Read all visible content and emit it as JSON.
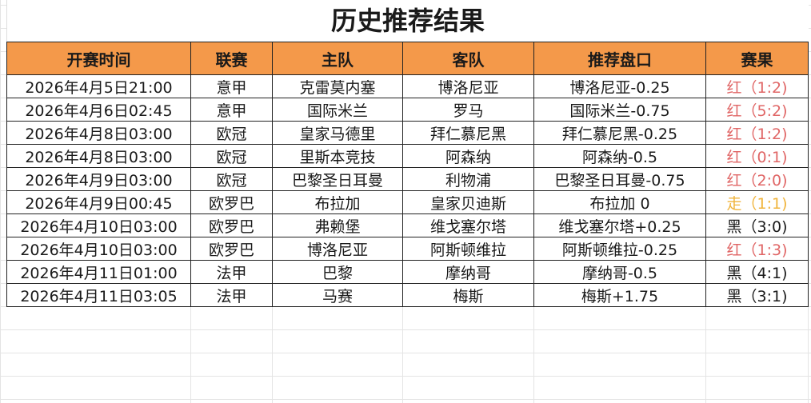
{
  "title": "历史推荐结果",
  "columns": [
    "开赛时间",
    "联赛",
    "主队",
    "客队",
    "推荐盘口",
    "赛果"
  ],
  "colors": {
    "header_bg": "#F4994A",
    "win_red": "#E06666",
    "push_yellow": "#F0B43C",
    "loss_black": "#1a1a1a"
  },
  "rows": [
    {
      "time": "2026年4月5日21:00",
      "league": "意甲",
      "home": "克雷莫内塞",
      "away": "博洛尼亚",
      "pick": "博洛尼亚-0.25",
      "result": "红（1:2)",
      "status": "red"
    },
    {
      "time": "2026年4月6日02:45",
      "league": "意甲",
      "home": "国际米兰",
      "away": "罗马",
      "pick": "国际米兰-0.75",
      "result": "红（5:2)",
      "status": "red"
    },
    {
      "time": "2026年4月8日03:00",
      "league": "欧冠",
      "home": "皇家马德里",
      "away": "拜仁慕尼黑",
      "pick": "拜仁慕尼黑-0.25",
      "result": "红（1:2)",
      "status": "red"
    },
    {
      "time": "2026年4月8日03:00",
      "league": "欧冠",
      "home": "里斯本竞技",
      "away": "阿森纳",
      "pick": "阿森纳-0.5",
      "result": "红（0:1)",
      "status": "red"
    },
    {
      "time": "2026年4月9日03:00",
      "league": "欧冠",
      "home": "巴黎圣日耳曼",
      "away": "利物浦",
      "pick": "巴黎圣日耳曼-0.75",
      "result": "红（2:0)",
      "status": "red"
    },
    {
      "time": "2026年4月9日00:45",
      "league": "欧罗巴",
      "home": "布拉加",
      "away": "皇家贝迪斯",
      "pick": "布拉加 0",
      "result": "走（1:1)",
      "status": "push"
    },
    {
      "time": "2026年4月10日03:00",
      "league": "欧罗巴",
      "home": "弗赖堡",
      "away": "维戈塞尔塔",
      "pick": "维戈塞尔塔+0.25",
      "result": "黑（3:0)",
      "status": "black"
    },
    {
      "time": "2026年4月10日03:00",
      "league": "欧罗巴",
      "home": "博洛尼亚",
      "away": "阿斯顿维拉",
      "pick": "阿斯顿维拉-0.25",
      "result": "红（1:3)",
      "status": "red"
    },
    {
      "time": "2026年4月11日01:00",
      "league": "法甲",
      "home": "巴黎",
      "away": "摩纳哥",
      "pick": "摩纳哥-0.5",
      "result": "黑（4:1)",
      "status": "black"
    },
    {
      "time": "2026年4月11日03:05",
      "league": "法甲",
      "home": "马赛",
      "away": "梅斯",
      "pick": "梅斯+1.75",
      "result": "黑（3:1)",
      "status": "black"
    }
  ]
}
